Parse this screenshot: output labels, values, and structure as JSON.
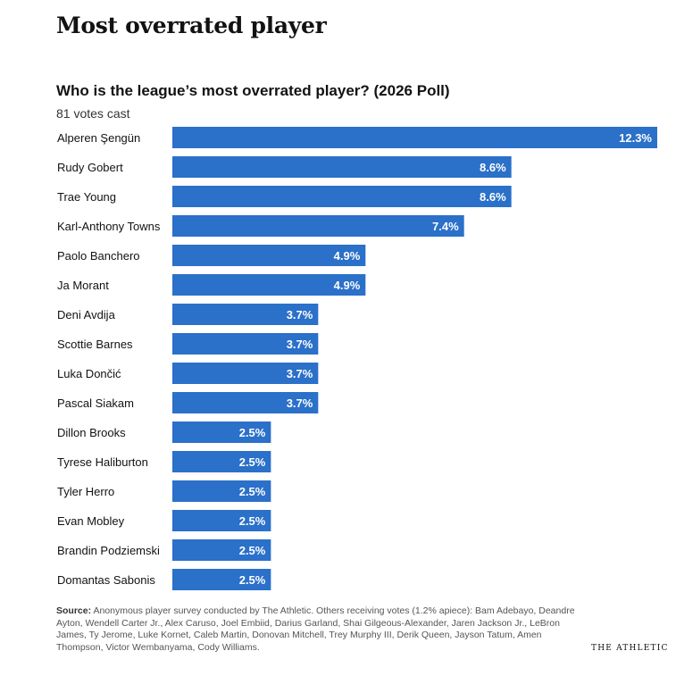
{
  "header": {
    "headline": "Most overrated player"
  },
  "chart_data": {
    "type": "bar",
    "orientation": "horizontal",
    "title": "Who is the league’s most overrated player? (2026 Poll)",
    "note": "81 votes cast",
    "value_suffix": "%",
    "bar_color": "#2b70c9",
    "xlim": [
      0,
      12.3
    ],
    "grid": false,
    "categories": [
      "Alperen Şengün",
      "Rudy Gobert",
      "Trae Young",
      "Karl-Anthony Towns",
      "Paolo Banchero",
      "Ja Morant",
      "Deni Avdija",
      "Scottie Barnes",
      "Luka Dončić",
      "Pascal Siakam",
      "Dillon Brooks",
      "Tyrese Haliburton",
      "Tyler Herro",
      "Evan Mobley",
      "Brandin Podziemski",
      "Domantas Sabonis"
    ],
    "values": [
      12.3,
      8.6,
      8.6,
      7.4,
      4.9,
      4.9,
      3.7,
      3.7,
      3.7,
      3.7,
      2.5,
      2.5,
      2.5,
      2.5,
      2.5,
      2.5
    ]
  },
  "footer": {
    "source_label": "Source:",
    "source_text": "Anonymous player survey conducted by The Athletic. Others receiving votes (1.2% apiece): Bam Adebayo, Deandre Ayton, Wendell Carter Jr., Alex Caruso, Joel Embiid, Darius Garland, Shai Gilgeous-Alexander, Jaren Jackson Jr., LeBron James, Ty Jerome, Luke Kornet, Caleb Martin, Donovan Mitchell, Trey Murphy III, Derik Queen, Jayson Tatum, Amen Thompson, Victor Wembanyama, Cody Williams.",
    "brand": "THE ATHLETIC"
  }
}
